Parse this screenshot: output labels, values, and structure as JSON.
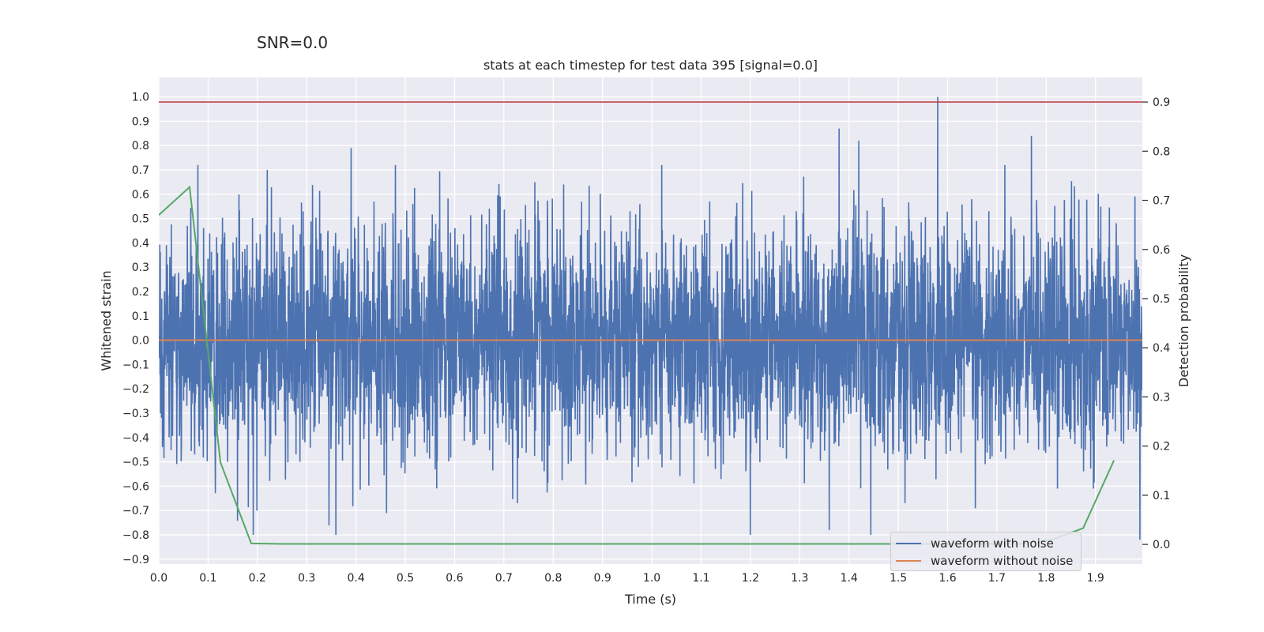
{
  "suptitle": "SNR=0.0",
  "chart_data": {
    "type": "line",
    "title": "stats at each timestep for test data 395 [signal=0.0]",
    "xlabel": "Time (s)",
    "ylabel_left": "Whitened strain",
    "ylabel_right": "Detection probability",
    "xlim": [
      0.0,
      1.995
    ],
    "ylim_left": [
      -0.92,
      1.08
    ],
    "ylim_right": [
      -0.04,
      0.95
    ],
    "x_ticks": [
      "0.0",
      "0.1",
      "0.2",
      "0.3",
      "0.4",
      "0.5",
      "0.6",
      "0.7",
      "0.8",
      "0.9",
      "1.0",
      "1.1",
      "1.2",
      "1.3",
      "1.4",
      "1.5",
      "1.6",
      "1.7",
      "1.8",
      "1.9"
    ],
    "y_ticks_left": [
      "1.0",
      "0.9",
      "0.8",
      "0.7",
      "0.6",
      "0.5",
      "0.4",
      "0.3",
      "0.2",
      "0.1",
      "0.0",
      "−0.1",
      "−0.2",
      "−0.3",
      "−0.4",
      "−0.5",
      "−0.6",
      "−0.7",
      "−0.8",
      "−0.9"
    ],
    "y_ticks_right": [
      "0.9",
      "0.8",
      "0.7",
      "0.6",
      "0.5",
      "0.4",
      "0.3",
      "0.2",
      "0.1",
      "0.0"
    ],
    "grid": true,
    "legend_position": "bottom-right",
    "series": [
      {
        "name": "waveform with noise",
        "axis": "left",
        "color": "#4c72b0",
        "style": "dense noise",
        "sample_count": 4000,
        "approx_range": [
          -0.8,
          1.0
        ],
        "notable_peaks": [
          {
            "x": 1.58,
            "y": 1.0
          },
          {
            "x": 1.38,
            "y": 0.87
          },
          {
            "x": 1.77,
            "y": 0.84
          },
          {
            "x": 1.42,
            "y": 0.82
          },
          {
            "x": 0.39,
            "y": 0.79
          },
          {
            "x": 0.48,
            "y": 0.72
          },
          {
            "x": 1.02,
            "y": 0.72
          },
          {
            "x": 0.22,
            "y": 0.7
          },
          {
            "x": 1.2,
            "y": -0.8
          },
          {
            "x": 1.36,
            "y": -0.78
          },
          {
            "x": 1.99,
            "y": -0.82
          }
        ]
      },
      {
        "name": "waveform without noise",
        "axis": "left",
        "color": "#dd8452",
        "x": [
          0.0,
          1.995
        ],
        "y": [
          0.0,
          0.0
        ]
      },
      {
        "name": "",
        "axis": "right",
        "color": "#55a868",
        "x": [
          0.0,
          0.0625,
          0.125,
          0.1875,
          0.25,
          0.5,
          1.0,
          1.5,
          1.75,
          1.8125,
          1.875,
          1.9375
        ],
        "y": [
          0.67,
          0.727,
          0.167,
          0.002,
          0.001,
          0.001,
          0.001,
          0.001,
          0.001,
          0.01,
          0.033,
          0.171
        ]
      }
    ],
    "hlines": [
      {
        "axis": "right",
        "y": 0.9,
        "color": "#c44e52"
      }
    ]
  }
}
